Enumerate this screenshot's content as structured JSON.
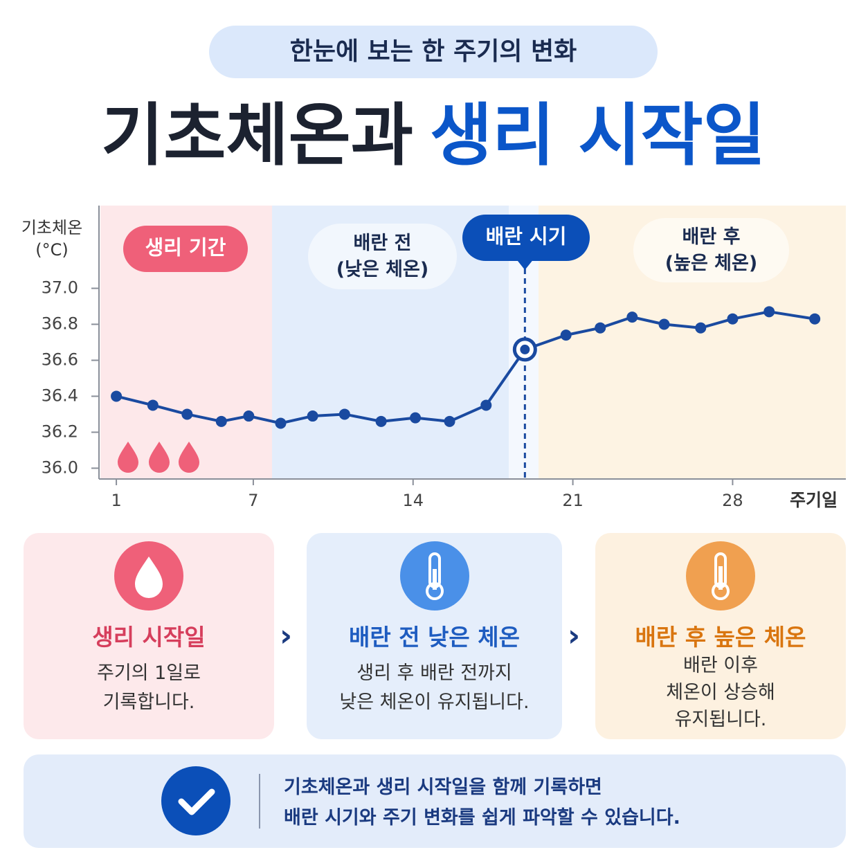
{
  "header": {
    "badge": "한눈에 보는 한 주기의 변화",
    "title_main": "기초체온과",
    "title_accent": "생리 시작일"
  },
  "chart_data": {
    "type": "line",
    "ylabel": [
      "기초체온",
      "(°C)"
    ],
    "xlabel": "주기일",
    "phases": [
      {
        "label": "생리 기간"
      },
      {
        "label": "배란 전",
        "sub": "(낮은 체온)"
      },
      {
        "label": "배란 시기"
      },
      {
        "label": "배란 후",
        "sub": "(높은 체온)"
      }
    ],
    "x": [
      1,
      2.6,
      4.1,
      5.6,
      6.8,
      8.2,
      9.6,
      11,
      12.6,
      14.1,
      15.6,
      17.2,
      18.9,
      20.7,
      22.2,
      23.6,
      25,
      26.6,
      28,
      29.6,
      31.6
    ],
    "values": [
      36.4,
      36.35,
      36.3,
      36.26,
      36.29,
      36.25,
      36.29,
      36.3,
      36.26,
      36.28,
      36.26,
      36.35,
      36.66,
      36.74,
      36.78,
      36.84,
      36.8,
      36.78,
      36.83,
      36.87,
      36.83
    ],
    "color": "#1a4aa0",
    "xlim": [
      0.3,
      32.9
    ],
    "xticks": [
      1,
      7,
      14,
      21,
      28
    ],
    "ylim": [
      35.94,
      37.46
    ],
    "yticks": [
      {
        "value": 36,
        "label": "36.0"
      },
      36.2,
      36.4,
      36.6,
      36.8,
      {
        "value": 37,
        "label": "37.0"
      }
    ]
  },
  "cards": [
    {
      "title": "생리 시작일",
      "lines": [
        "주기의 1일로",
        "기록합니다."
      ]
    },
    {
      "title": "배란 전 낮은 체온",
      "lines": [
        "생리 후 배란 전까지",
        "낮은 체온이 유지됩니다."
      ]
    },
    {
      "title": "배란 후 높은 체온",
      "lines": [
        "배란 이후",
        "체온이 상승해",
        "유지됩니다."
      ]
    }
  ],
  "note": {
    "lines": [
      "기초체온과 생리 시작일을 함께 기록하면",
      "배란 시기와 주기 변화를 쉽게 파악할 수 있습니다."
    ]
  }
}
